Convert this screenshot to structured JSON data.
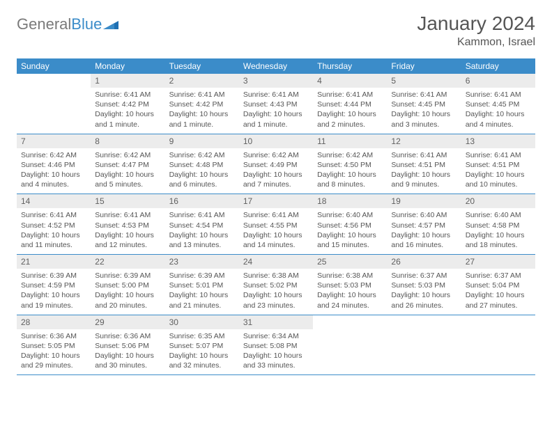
{
  "logo": {
    "text1": "General",
    "text2": "Blue"
  },
  "title": "January 2024",
  "location": "Kammon, Israel",
  "colors": {
    "header_bg": "#3b8cc9",
    "header_fg": "#ffffff",
    "daynum_bg": "#ececec",
    "text": "#555555",
    "rule": "#3b8cc9"
  },
  "weekdays": [
    "Sunday",
    "Monday",
    "Tuesday",
    "Wednesday",
    "Thursday",
    "Friday",
    "Saturday"
  ],
  "weeks": [
    [
      null,
      {
        "n": "1",
        "sr": "Sunrise: 6:41 AM",
        "ss": "Sunset: 4:42 PM",
        "d1": "Daylight: 10 hours",
        "d2": "and 1 minute."
      },
      {
        "n": "2",
        "sr": "Sunrise: 6:41 AM",
        "ss": "Sunset: 4:42 PM",
        "d1": "Daylight: 10 hours",
        "d2": "and 1 minute."
      },
      {
        "n": "3",
        "sr": "Sunrise: 6:41 AM",
        "ss": "Sunset: 4:43 PM",
        "d1": "Daylight: 10 hours",
        "d2": "and 1 minute."
      },
      {
        "n": "4",
        "sr": "Sunrise: 6:41 AM",
        "ss": "Sunset: 4:44 PM",
        "d1": "Daylight: 10 hours",
        "d2": "and 2 minutes."
      },
      {
        "n": "5",
        "sr": "Sunrise: 6:41 AM",
        "ss": "Sunset: 4:45 PM",
        "d1": "Daylight: 10 hours",
        "d2": "and 3 minutes."
      },
      {
        "n": "6",
        "sr": "Sunrise: 6:41 AM",
        "ss": "Sunset: 4:45 PM",
        "d1": "Daylight: 10 hours",
        "d2": "and 4 minutes."
      }
    ],
    [
      {
        "n": "7",
        "sr": "Sunrise: 6:42 AM",
        "ss": "Sunset: 4:46 PM",
        "d1": "Daylight: 10 hours",
        "d2": "and 4 minutes."
      },
      {
        "n": "8",
        "sr": "Sunrise: 6:42 AM",
        "ss": "Sunset: 4:47 PM",
        "d1": "Daylight: 10 hours",
        "d2": "and 5 minutes."
      },
      {
        "n": "9",
        "sr": "Sunrise: 6:42 AM",
        "ss": "Sunset: 4:48 PM",
        "d1": "Daylight: 10 hours",
        "d2": "and 6 minutes."
      },
      {
        "n": "10",
        "sr": "Sunrise: 6:42 AM",
        "ss": "Sunset: 4:49 PM",
        "d1": "Daylight: 10 hours",
        "d2": "and 7 minutes."
      },
      {
        "n": "11",
        "sr": "Sunrise: 6:42 AM",
        "ss": "Sunset: 4:50 PM",
        "d1": "Daylight: 10 hours",
        "d2": "and 8 minutes."
      },
      {
        "n": "12",
        "sr": "Sunrise: 6:41 AM",
        "ss": "Sunset: 4:51 PM",
        "d1": "Daylight: 10 hours",
        "d2": "and 9 minutes."
      },
      {
        "n": "13",
        "sr": "Sunrise: 6:41 AM",
        "ss": "Sunset: 4:51 PM",
        "d1": "Daylight: 10 hours",
        "d2": "and 10 minutes."
      }
    ],
    [
      {
        "n": "14",
        "sr": "Sunrise: 6:41 AM",
        "ss": "Sunset: 4:52 PM",
        "d1": "Daylight: 10 hours",
        "d2": "and 11 minutes."
      },
      {
        "n": "15",
        "sr": "Sunrise: 6:41 AM",
        "ss": "Sunset: 4:53 PM",
        "d1": "Daylight: 10 hours",
        "d2": "and 12 minutes."
      },
      {
        "n": "16",
        "sr": "Sunrise: 6:41 AM",
        "ss": "Sunset: 4:54 PM",
        "d1": "Daylight: 10 hours",
        "d2": "and 13 minutes."
      },
      {
        "n": "17",
        "sr": "Sunrise: 6:41 AM",
        "ss": "Sunset: 4:55 PM",
        "d1": "Daylight: 10 hours",
        "d2": "and 14 minutes."
      },
      {
        "n": "18",
        "sr": "Sunrise: 6:40 AM",
        "ss": "Sunset: 4:56 PM",
        "d1": "Daylight: 10 hours",
        "d2": "and 15 minutes."
      },
      {
        "n": "19",
        "sr": "Sunrise: 6:40 AM",
        "ss": "Sunset: 4:57 PM",
        "d1": "Daylight: 10 hours",
        "d2": "and 16 minutes."
      },
      {
        "n": "20",
        "sr": "Sunrise: 6:40 AM",
        "ss": "Sunset: 4:58 PM",
        "d1": "Daylight: 10 hours",
        "d2": "and 18 minutes."
      }
    ],
    [
      {
        "n": "21",
        "sr": "Sunrise: 6:39 AM",
        "ss": "Sunset: 4:59 PM",
        "d1": "Daylight: 10 hours",
        "d2": "and 19 minutes."
      },
      {
        "n": "22",
        "sr": "Sunrise: 6:39 AM",
        "ss": "Sunset: 5:00 PM",
        "d1": "Daylight: 10 hours",
        "d2": "and 20 minutes."
      },
      {
        "n": "23",
        "sr": "Sunrise: 6:39 AM",
        "ss": "Sunset: 5:01 PM",
        "d1": "Daylight: 10 hours",
        "d2": "and 21 minutes."
      },
      {
        "n": "24",
        "sr": "Sunrise: 6:38 AM",
        "ss": "Sunset: 5:02 PM",
        "d1": "Daylight: 10 hours",
        "d2": "and 23 minutes."
      },
      {
        "n": "25",
        "sr": "Sunrise: 6:38 AM",
        "ss": "Sunset: 5:03 PM",
        "d1": "Daylight: 10 hours",
        "d2": "and 24 minutes."
      },
      {
        "n": "26",
        "sr": "Sunrise: 6:37 AM",
        "ss": "Sunset: 5:03 PM",
        "d1": "Daylight: 10 hours",
        "d2": "and 26 minutes."
      },
      {
        "n": "27",
        "sr": "Sunrise: 6:37 AM",
        "ss": "Sunset: 5:04 PM",
        "d1": "Daylight: 10 hours",
        "d2": "and 27 minutes."
      }
    ],
    [
      {
        "n": "28",
        "sr": "Sunrise: 6:36 AM",
        "ss": "Sunset: 5:05 PM",
        "d1": "Daylight: 10 hours",
        "d2": "and 29 minutes."
      },
      {
        "n": "29",
        "sr": "Sunrise: 6:36 AM",
        "ss": "Sunset: 5:06 PM",
        "d1": "Daylight: 10 hours",
        "d2": "and 30 minutes."
      },
      {
        "n": "30",
        "sr": "Sunrise: 6:35 AM",
        "ss": "Sunset: 5:07 PM",
        "d1": "Daylight: 10 hours",
        "d2": "and 32 minutes."
      },
      {
        "n": "31",
        "sr": "Sunrise: 6:34 AM",
        "ss": "Sunset: 5:08 PM",
        "d1": "Daylight: 10 hours",
        "d2": "and 33 minutes."
      },
      null,
      null,
      null
    ]
  ]
}
